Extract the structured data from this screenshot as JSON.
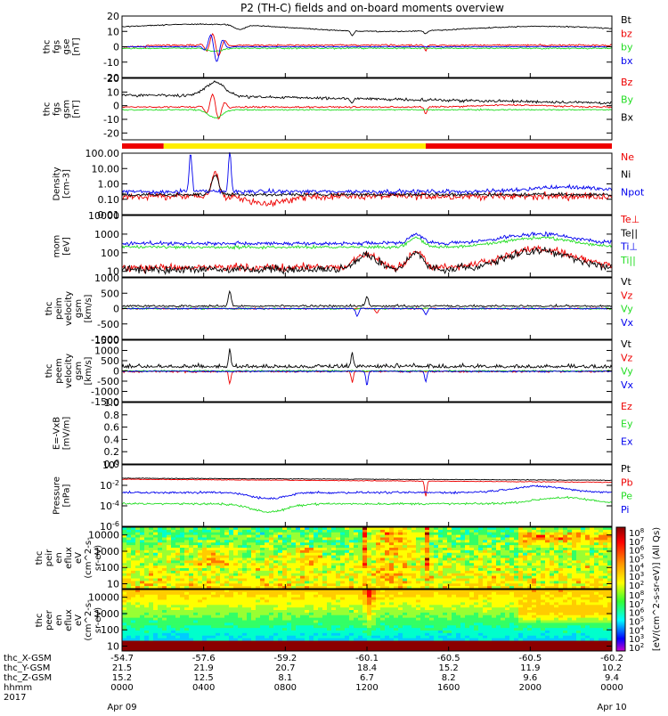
{
  "title": "P2 (TH-C) fields and on-board moments overview",
  "colors": {
    "black": "#000000",
    "red": "#ee0000",
    "green": "#22dd22",
    "blue": "#0000ee",
    "yellow": "#ffee00",
    "flag_red": "#ee0000",
    "axis": "#000000"
  },
  "colorbar": {
    "labels": [
      "10^8",
      "10^7",
      "10^6",
      "10^5",
      "10^4",
      "10^3",
      "10^2"
    ],
    "unit_label": "[eV/(cm^2-s-sr-eV)] (All Qs)"
  },
  "chart_data": {
    "type": "line",
    "x_axis": {
      "tick_labels": [
        "0000",
        "0400",
        "0800",
        "1200",
        "1600",
        "2000",
        "0000"
      ],
      "row_labels": [
        "thc_X-GSM",
        "thc_Y-GSM",
        "thc_Z-GSM",
        "hhmm",
        "2017"
      ],
      "rows": {
        "thc_X-GSM": [
          "-54.7",
          "-57.6",
          "-59.2",
          "-60.1",
          "-60.5",
          "-60.5",
          "-60.2"
        ],
        "thc_Y-GSM": [
          "21.5",
          "21.9",
          "20.7",
          "18.4",
          "15.2",
          "11.9",
          "10.2"
        ],
        "thc_Z-GSM": [
          "15.2",
          "12.5",
          "8.1",
          "6.7",
          "8.2",
          "9.6",
          "9.4"
        ],
        "hhmm": [
          "0000",
          "0400",
          "0800",
          "1200",
          "1600",
          "2000",
          "0000"
        ]
      },
      "date_labels": [
        {
          "label": "Apr 09",
          "tick_index": 0
        },
        {
          "label": "Apr 10",
          "tick_index": 6
        }
      ]
    },
    "panels": [
      {
        "id": "fgs-gse",
        "ylabel": [
          "thc",
          "fgs",
          "gse",
          "[nT]"
        ],
        "ylim": [
          -20,
          20
        ],
        "scale": "linear",
        "ticks": [
          "20",
          "10",
          "0",
          "-10",
          "-20"
        ],
        "legend": [
          "Bt",
          "bz",
          "by",
          "bx"
        ],
        "legend_colors": [
          "#000000",
          "#ee0000",
          "#22dd22",
          "#0000ee"
        ]
      },
      {
        "id": "fgs-gsm",
        "ylabel": [
          "thc",
          "fgs",
          "gsm",
          "[nT]"
        ],
        "ylim": [
          -25,
          20
        ],
        "scale": "linear",
        "ticks": [
          "20",
          "10",
          "0",
          "-10",
          "-20"
        ],
        "legend": [
          "Bz",
          "By",
          "Bx"
        ],
        "legend_colors": [
          "#ee0000",
          "#22dd22",
          "#000000"
        ]
      },
      {
        "id": "density",
        "ylabel": [
          "Density",
          "[cm-3]"
        ],
        "ylim": [
          0.01,
          100
        ],
        "scale": "log",
        "ticks": [
          "100.00",
          "10.00",
          "1.00",
          "0.10",
          "0.01"
        ],
        "legend": [
          "Ne",
          "Ni",
          "Npot"
        ],
        "legend_colors": [
          "#ee0000",
          "#000000",
          "#0000ee"
        ]
      },
      {
        "id": "temperature",
        "ylabel": [
          "mom",
          "[eV]"
        ],
        "ylim": [
          5,
          10000
        ],
        "scale": "log",
        "ticks": [
          "10000",
          "1000",
          "100",
          "10"
        ],
        "legend": [
          "Te⊥",
          "Te||",
          "Ti⊥",
          "Ti||"
        ],
        "legend_colors": [
          "#ee0000",
          "#000000",
          "#0000ee",
          "#22dd22"
        ]
      },
      {
        "id": "peim-velocity",
        "ylabel": [
          "thc",
          "peim",
          "velocity",
          "gsm",
          "[km/s]"
        ],
        "ylim": [
          -1000,
          1000
        ],
        "scale": "linear",
        "ticks": [
          "1000",
          "500",
          "0",
          "-500",
          "-1000"
        ],
        "legend": [
          "Vt",
          "Vz",
          "Vy",
          "Vx"
        ],
        "legend_colors": [
          "#000000",
          "#ee0000",
          "#22dd22",
          "#0000ee"
        ]
      },
      {
        "id": "peem-velocity",
        "ylabel": [
          "thc",
          "peem",
          "velocity",
          "gsm",
          "[km/s]"
        ],
        "ylim": [
          -1500,
          1500
        ],
        "scale": "linear",
        "ticks": [
          "1500",
          "1000",
          "500",
          "0",
          "-500",
          "-1000",
          "-1500"
        ],
        "legend": [
          "Vt",
          "Vz",
          "Vy",
          "Vx"
        ],
        "legend_colors": [
          "#000000",
          "#ee0000",
          "#22dd22",
          "#0000ee"
        ]
      },
      {
        "id": "efield",
        "ylabel": [
          "E=-VxB",
          "[mV/m]"
        ],
        "ylim": [
          0,
          1
        ],
        "scale": "linear",
        "ticks": [
          "1.0",
          "0.8",
          "0.6",
          "0.4",
          "0.2",
          "0.0"
        ],
        "legend": [
          "Ez",
          "Ey",
          "Ex"
        ],
        "legend_colors": [
          "#ee0000",
          "#22dd22",
          "#0000ee"
        ]
      },
      {
        "id": "pressure",
        "ylabel": [
          "Pressure",
          "[nPa]"
        ],
        "ylim": [
          1e-06,
          1
        ],
        "scale": "log",
        "ticks": [
          "10^0",
          "10^-2",
          "10^-4",
          "10^-6"
        ],
        "legend": [
          "Pt",
          "Pb",
          "Pe",
          "Pi"
        ],
        "legend_colors": [
          "#000000",
          "#ee0000",
          "#22dd22",
          "#0000ee"
        ]
      },
      {
        "id": "peir-spectrogram",
        "type": "heatmap",
        "ylabel": [
          "thc",
          "peir",
          "en",
          "eflux",
          "eV",
          "(cm^2-s-",
          "sr-eV)"
        ],
        "ylim": [
          5,
          30000
        ],
        "scale": "log",
        "ticks": [
          "10000",
          "1000",
          "100",
          "10"
        ]
      },
      {
        "id": "peer-spectrogram",
        "type": "heatmap",
        "ylabel": [
          "thc",
          "peer",
          "en",
          "eflux",
          "eV",
          "(cm^2-s-",
          "sr-eV)"
        ],
        "ylim": [
          5,
          30000
        ],
        "scale": "log",
        "ticks": [
          "10000",
          "1000",
          "100",
          "10"
        ]
      }
    ],
    "mode_flags": [
      {
        "color": "red",
        "from": 0.0,
        "to": 0.085
      },
      {
        "color": "yellow",
        "from": 0.085,
        "to": 0.62
      },
      {
        "color": "red",
        "from": 0.62,
        "to": 1.0
      }
    ]
  }
}
